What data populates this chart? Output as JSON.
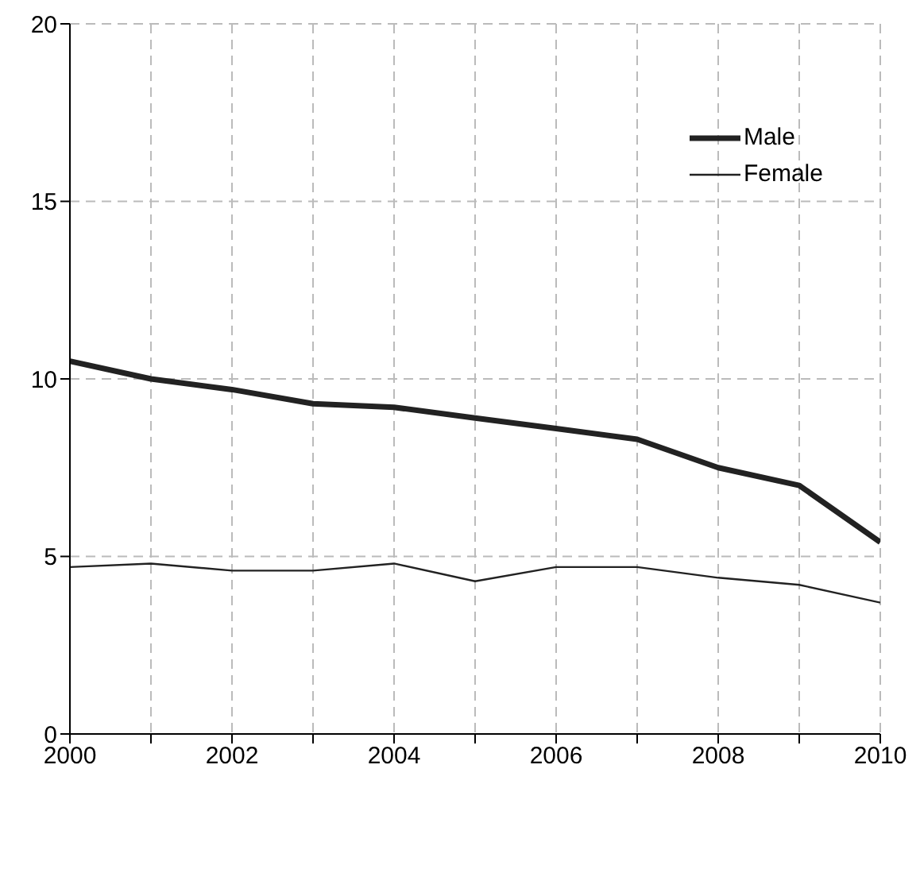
{
  "chart_data": {
    "type": "line",
    "x": [
      2000,
      2001,
      2002,
      2003,
      2004,
      2005,
      2006,
      2007,
      2008,
      2009,
      2010
    ],
    "series": [
      {
        "name": "Male",
        "color": "#222222",
        "values": [
          10.5,
          10.0,
          9.7,
          9.3,
          9.2,
          8.9,
          8.6,
          8.3,
          7.5,
          7.0,
          5.4
        ]
      },
      {
        "name": "Female",
        "color": "#222222",
        "values": [
          4.7,
          4.8,
          4.6,
          4.6,
          4.8,
          4.3,
          4.7,
          4.7,
          4.4,
          4.2,
          3.7
        ]
      }
    ],
    "xlim": [
      2000,
      2010
    ],
    "xticks": [
      2000,
      {
        "value": 2001,
        "label": null
      },
      2002,
      {
        "value": 2003,
        "label": null
      },
      2004,
      {
        "value": 2005,
        "label": null
      },
      2006,
      {
        "value": 2007,
        "label": null
      },
      2008,
      {
        "value": 2009,
        "label": null
      },
      2010
    ],
    "ylim": [
      0,
      20
    ],
    "yticks": [
      0,
      5,
      10,
      15,
      20
    ],
    "grid": true,
    "legend": "top right",
    "marker": "none",
    "line_style": "solid"
  }
}
